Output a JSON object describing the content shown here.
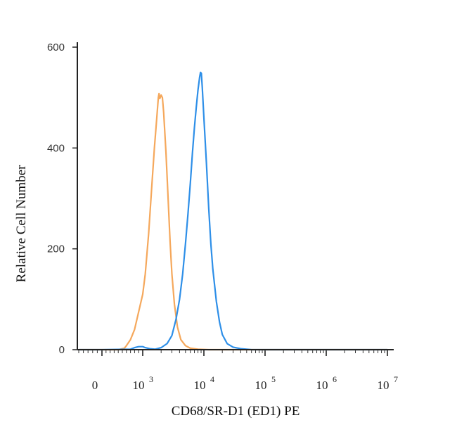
{
  "chart_data": {
    "type": "line",
    "title": "",
    "xlabel": "CD68/SR-D1 (ED1) PE",
    "ylabel": "Relative Cell Number",
    "xscale": "biexponential",
    "ylim": [
      0,
      600
    ],
    "yticks": [
      0,
      200,
      400,
      600
    ],
    "xticks": [
      {
        "value": 0,
        "base": "0",
        "exp": ""
      },
      {
        "value": 1000,
        "base": "10",
        "exp": "3"
      },
      {
        "value": 10000,
        "base": "10",
        "exp": "4"
      },
      {
        "value": 100000,
        "base": "10",
        "exp": "5"
      },
      {
        "value": 1000000,
        "base": "10",
        "exp": "6"
      },
      {
        "value": 10000000,
        "base": "10",
        "exp": "7"
      }
    ],
    "grid": false,
    "series": [
      {
        "color": "#f5a85c",
        "points": [
          [
            -500,
            0
          ],
          [
            0,
            0
          ],
          [
            400,
            0
          ],
          [
            550,
            3
          ],
          [
            600,
            8
          ],
          [
            700,
            20
          ],
          [
            800,
            40
          ],
          [
            900,
            75
          ],
          [
            1000,
            110
          ],
          [
            1100,
            150
          ],
          [
            1250,
            230
          ],
          [
            1400,
            320
          ],
          [
            1550,
            400
          ],
          [
            1700,
            460
          ],
          [
            1800,
            500
          ],
          [
            1850,
            508
          ],
          [
            1900,
            498
          ],
          [
            2000,
            505
          ],
          [
            2100,
            500
          ],
          [
            2200,
            470
          ],
          [
            2400,
            390
          ],
          [
            2600,
            300
          ],
          [
            2800,
            215
          ],
          [
            3000,
            150
          ],
          [
            3300,
            90
          ],
          [
            3700,
            45
          ],
          [
            4200,
            20
          ],
          [
            5000,
            8
          ],
          [
            6000,
            3
          ],
          [
            8000,
            1
          ],
          [
            12000,
            0
          ],
          [
            100000,
            0
          ],
          [
            10000000,
            0
          ]
        ]
      },
      {
        "color": "#2e8fe8",
        "points": [
          [
            -500,
            0
          ],
          [
            0,
            0
          ],
          [
            700,
            1
          ],
          [
            800,
            4
          ],
          [
            900,
            6
          ],
          [
            1000,
            6
          ],
          [
            1100,
            4
          ],
          [
            1300,
            2
          ],
          [
            1600,
            1
          ],
          [
            2000,
            4
          ],
          [
            2500,
            12
          ],
          [
            3000,
            28
          ],
          [
            3500,
            60
          ],
          [
            4000,
            100
          ],
          [
            4500,
            150
          ],
          [
            5000,
            210
          ],
          [
            5500,
            270
          ],
          [
            6000,
            330
          ],
          [
            6500,
            390
          ],
          [
            7000,
            440
          ],
          [
            7500,
            480
          ],
          [
            8000,
            515
          ],
          [
            8500,
            540
          ],
          [
            8800,
            550
          ],
          [
            9100,
            548
          ],
          [
            9400,
            520
          ],
          [
            10000,
            460
          ],
          [
            11000,
            370
          ],
          [
            12000,
            280
          ],
          [
            13000,
            210
          ],
          [
            14000,
            160
          ],
          [
            16000,
            95
          ],
          [
            18000,
            55
          ],
          [
            20000,
            30
          ],
          [
            24000,
            12
          ],
          [
            30000,
            5
          ],
          [
            40000,
            2
          ],
          [
            60000,
            0
          ],
          [
            10000000,
            0
          ]
        ]
      }
    ]
  }
}
